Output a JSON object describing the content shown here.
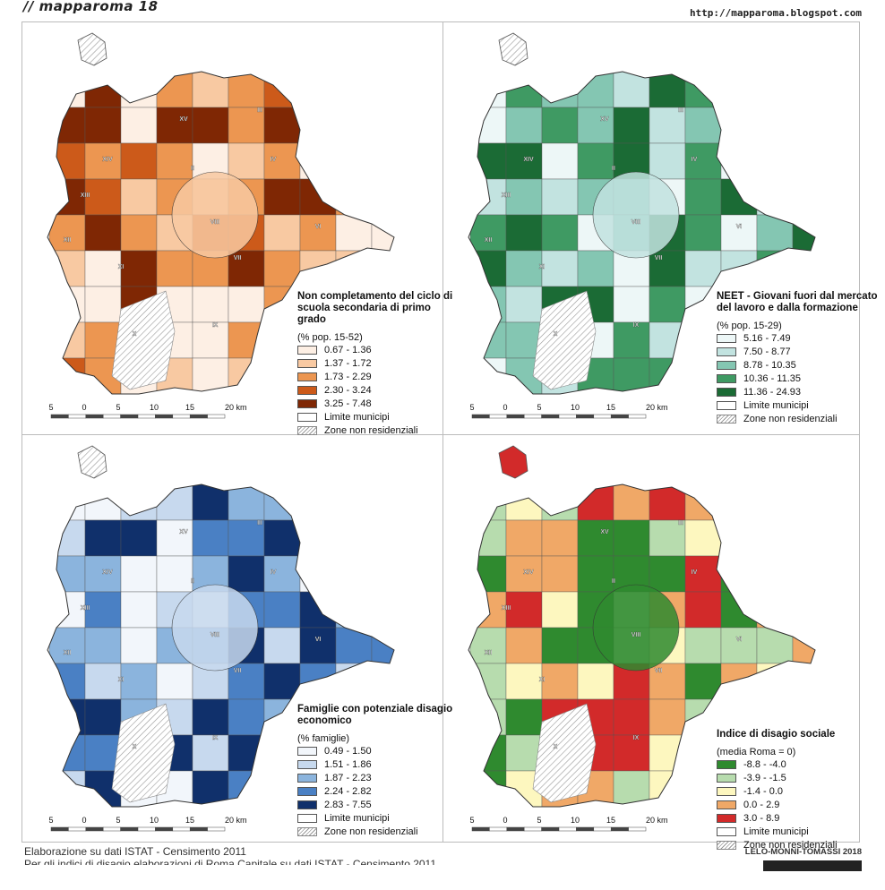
{
  "header": {
    "brand": "// mapparoma 18",
    "url": "http://mapparoma.blogspot.com"
  },
  "panels": [
    {
      "title": "Non completamento del ciclo di scuola secondaria di primo grado",
      "unit": "(% pop. 15-52)",
      "colors": [
        "#fdefe4",
        "#f8c9a2",
        "#ec9651",
        "#cc5a1a",
        "#7f2704"
      ],
      "classes": [
        "0.67 - 1.36",
        "1.37 - 1.72",
        "1.73 - 2.29",
        "2.30 - 3.24",
        "3.25 - 7.48"
      ]
    },
    {
      "title": "NEET - Giovani fuori dal mercato del lavoro e dalla formazione",
      "unit": "(% pop. 15-29)",
      "colors": [
        "#edf7f7",
        "#c2e3e0",
        "#84c6b2",
        "#3f9a63",
        "#1b6b35"
      ],
      "classes": [
        "5.16 - 7.49",
        "7.50 - 8.77",
        "8.78 - 10.35",
        "10.36 - 11.35",
        "11.36 - 24.93"
      ]
    },
    {
      "title": "Famiglie con potenziale disagio economico",
      "unit": "(% famiglie)",
      "colors": [
        "#f2f6fb",
        "#c7d9ee",
        "#8bb4dd",
        "#4a80c4",
        "#10306b"
      ],
      "classes": [
        "0.49 - 1.50",
        "1.51 - 1.86",
        "1.87 - 2.23",
        "2.24 - 2.82",
        "2.83 - 7.55"
      ]
    },
    {
      "title": "Indice di disagio sociale",
      "unit": "(media Roma = 0)",
      "colors": [
        "#2f8a2f",
        "#b7dcae",
        "#fdf7bf",
        "#f0a867",
        "#d22a2a"
      ],
      "classes": [
        "-8.8 - -4.0",
        "-3.9 - -1.5",
        "-1.4 - 0.0",
        "0.0 - 2.9",
        "3.0 - 8.9"
      ]
    }
  ],
  "legend_common": {
    "limit": "Limite municipi",
    "nonres": "Zone non residenziali"
  },
  "scale": {
    "labels": [
      "5",
      "0",
      "5",
      "10",
      "15",
      "20 km"
    ]
  },
  "municipi": [
    "XV",
    "III",
    "XIV",
    "IV",
    "XIII",
    "II",
    "VI",
    "XII",
    "VIII",
    "VII",
    "XI",
    "IX",
    "X"
  ],
  "footer": {
    "source": "Elaborazione su dati ISTAT - Censimento 2011",
    "note": "Per gli indici di disagio elaborazioni di Roma Capitale su dati ISTAT - Censimento 2011",
    "authors": "LELO-MONNI-TOMASSI 2018"
  }
}
